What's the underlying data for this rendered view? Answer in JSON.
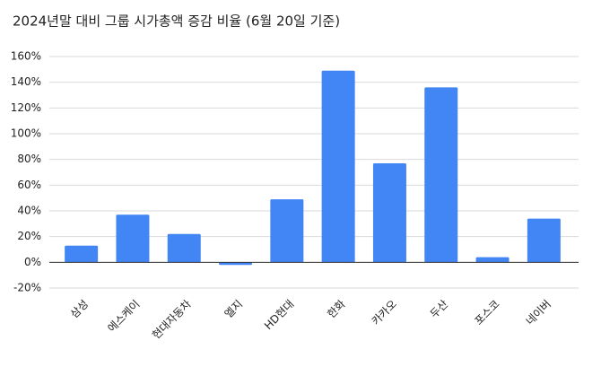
{
  "chart_data": {
    "type": "bar",
    "title": "2024년말 대비 그룹 시가총액 증감 비율 (6월 20일 기준)",
    "categories": [
      "삼성",
      "에스케이",
      "현대자동차",
      "엘지",
      "HD현대",
      "한화",
      "카카오",
      "두산",
      "포스코",
      "네이버"
    ],
    "values": [
      13,
      37,
      22,
      -2,
      49,
      149,
      77,
      136,
      4,
      34
    ],
    "color": "#4285f4",
    "ylim": [
      -20,
      160
    ],
    "yticks": [
      {
        "value": -20,
        "label": "-20%"
      },
      {
        "value": 0,
        "label": "0%"
      },
      {
        "value": 20,
        "label": "20%"
      },
      {
        "value": 40,
        "label": "40%"
      },
      {
        "value": 60,
        "label": "60%"
      },
      {
        "value": 80,
        "label": "80%"
      },
      {
        "value": 100,
        "label": "100%"
      },
      {
        "value": 120,
        "label": "120%"
      },
      {
        "value": 140,
        "label": "140%"
      },
      {
        "value": 160,
        "label": "160%"
      }
    ],
    "grid": true
  }
}
